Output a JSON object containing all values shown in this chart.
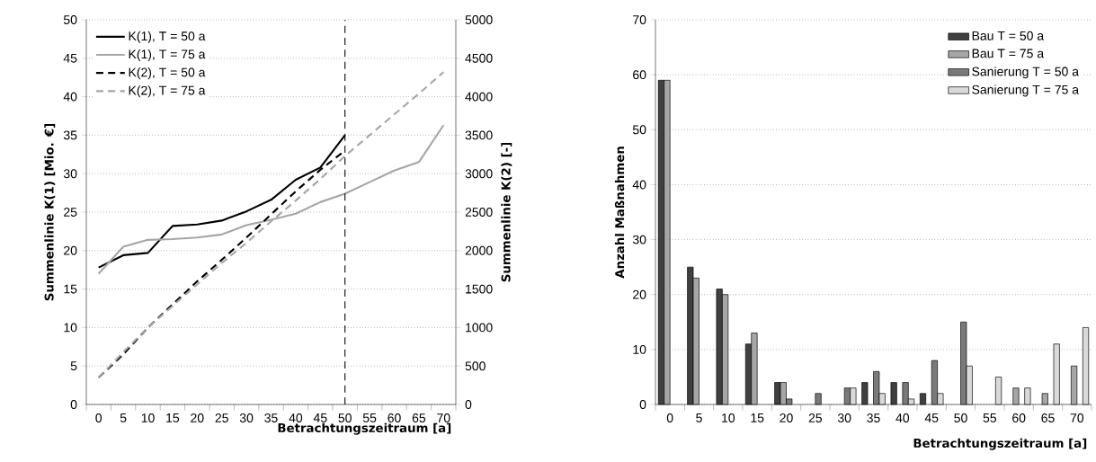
{
  "chart_data": [
    {
      "type": "line",
      "xlabel": "Betrachtungszeitraum [a]",
      "ylabel": "Summenlinie  K(1) [Mio. €]",
      "y2label": "Summenlinie  K(2) [-]",
      "categories": [
        "0",
        "5",
        "10",
        "15",
        "20",
        "25",
        "30",
        "35",
        "40",
        "45",
        "50",
        "55",
        "60",
        "65",
        "70"
      ],
      "series": [
        {
          "name": "K(1), T = 50 a",
          "color": "#000000",
          "line_style": "solid",
          "values": [
            17.8,
            19.4,
            19.7,
            23.2,
            23.4,
            23.9,
            25.1,
            26.6,
            29.2,
            30.8,
            35.0,
            null,
            null,
            null,
            null
          ]
        },
        {
          "name": "K(1), T = 75 a",
          "color": "#a6a6a6",
          "line_style": "solid",
          "values": [
            17.0,
            20.5,
            21.4,
            21.5,
            21.7,
            22.1,
            23.3,
            24.0,
            24.8,
            26.3,
            27.4,
            28.9,
            30.4,
            31.5,
            36.3
          ]
        },
        {
          "name": "K(2), T = 50 a",
          "color": "#000000",
          "line_style": "dashed",
          "axis": "y2",
          "values": [
            350,
            650,
            1000,
            1300,
            1600,
            1880,
            2170,
            2470,
            2770,
            3050,
            3300,
            null,
            null,
            null,
            null
          ]
        },
        {
          "name": "K(2), T = 75 a",
          "color": "#a6a6a6",
          "line_style": "dashed",
          "axis": "y2",
          "values": [
            350,
            680,
            1000,
            1280,
            1560,
            1840,
            2100,
            2380,
            2650,
            2930,
            3230,
            3500,
            3770,
            4040,
            4320
          ]
        }
      ],
      "ylim": [
        0,
        50
      ],
      "yticks": [
        0,
        5,
        10,
        15,
        20,
        25,
        30,
        35,
        40,
        45,
        50
      ],
      "y2lim": [
        0,
        5000
      ],
      "y2ticks": [
        0,
        500,
        1000,
        1500,
        2000,
        2500,
        3000,
        3500,
        4000,
        4500,
        5000
      ],
      "grid": "y",
      "legend": "top left",
      "marker": "none",
      "ref_lines": [
        {
          "axis": "x",
          "value": "50",
          "color": "#000000",
          "line_style": "dashed"
        }
      ]
    },
    {
      "type": "bar",
      "xlabel": "Betrachtungszeitraum [a]",
      "ylabel": "Anzahl Maßnahmen",
      "categories": [
        "0",
        "5",
        "10",
        "15",
        "20",
        "25",
        "30",
        "35",
        "40",
        "45",
        "50",
        "55",
        "60",
        "65",
        "70"
      ],
      "series": [
        {
          "name": "Bau T = 50 a",
          "color": "#404040",
          "values": [
            59,
            25,
            21,
            11,
            4,
            null,
            null,
            4,
            4,
            2,
            null,
            null,
            null,
            null,
            null
          ]
        },
        {
          "name": "Bau T = 75 a",
          "color": "#a6a6a6",
          "values": [
            59,
            23,
            20,
            13,
            4,
            null,
            null,
            null,
            null,
            null,
            null,
            null,
            3,
            2,
            7
          ]
        },
        {
          "name": "Sanierung T = 50 a",
          "color": "#7a7a7a",
          "values": [
            null,
            null,
            null,
            null,
            1,
            2,
            3,
            6,
            4,
            8,
            15,
            null,
            null,
            null,
            null
          ]
        },
        {
          "name": "Sanierung T = 75 a",
          "color": "#d9d9d9",
          "values": [
            null,
            null,
            null,
            null,
            null,
            null,
            3,
            2,
            1,
            2,
            7,
            5,
            3,
            11,
            14
          ]
        }
      ],
      "ylim": [
        0,
        70
      ],
      "yticks": [
        0,
        10,
        20,
        30,
        40,
        50,
        60,
        70
      ],
      "grid": "y",
      "legend": "top right"
    }
  ]
}
